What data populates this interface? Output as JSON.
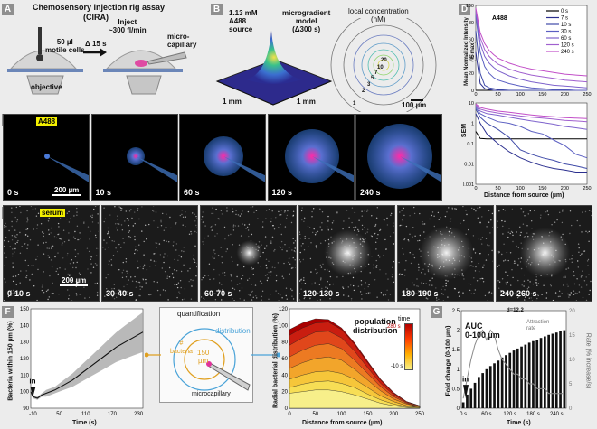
{
  "panels": {
    "A": {
      "letter": "A",
      "title": "Chemosensory injection rig assay",
      "subtitle": "(CIRA)",
      "cells_label": "50 µl\nmotile cells",
      "delta_label": "Δ 15 s",
      "inject_label": "Inject\n~300 fl/min",
      "micro_label": "micro-\ncapillary",
      "objective_label": "objective"
    },
    "B": {
      "letter": "B",
      "conc_label": "1.13 mM\nA488\nsource",
      "model_label": "microgradient\nmodel\n(Δ300 s)",
      "local_conc_label": "local concentration",
      "nm_label": "(nM)",
      "axis1": "1 mm",
      "axis2": "1 mm",
      "scale_label": "100 µm",
      "ring_values": [
        "20",
        "10",
        "7",
        "5",
        "3",
        "2",
        "1"
      ]
    },
    "C": {
      "letter": "C",
      "highlight": "A488",
      "frames": [
        "0 s",
        "10 s",
        "60 s",
        "120 s",
        "240 s"
      ],
      "scale_label": "200 µm"
    },
    "D": {
      "letter": "D",
      "highlight": "A488",
      "top_ylabel": "Mean Normalized Intensity\n(% max)",
      "bottom_ylabel": "SEM",
      "xlabel": "Distance from source (µm)",
      "legend": [
        "0 s",
        "7 s",
        "10 s",
        "30 s",
        "60 s",
        "120 s",
        "240 s"
      ]
    },
    "E": {
      "letter": "E",
      "highlight": "serum",
      "frames": [
        "0-10 s",
        "30-40 s",
        "60-70 s",
        "120-130 s",
        "180-190 s",
        "240-260 s"
      ],
      "scale_label": "200 µm"
    },
    "F": {
      "letter": "F",
      "ylabel": "Bacteria within 150 µm (%)",
      "xlabel": "Time (s)",
      "in_label": "in",
      "quant_title": "quantification",
      "distribution_label": "distribution",
      "bacteria_label": "#\nbacteria",
      "radius_label": "150\nµm",
      "capillary_label": "microcapillary",
      "dist_ylabel": "Radial bacterial distribution (%)",
      "dist_xlabel": "Distance from source (µm)",
      "dist_title": "population\ndistribution",
      "time_label": "time",
      "time_max": "280 s",
      "time_min": "-10 s"
    },
    "G": {
      "letter": "G",
      "ylabel": "Fold change (0-100 µm)",
      "y2label": "Rate (% increase/s)",
      "xlabel": "Time (s)",
      "auc_label": "AUC\n0-100 µm",
      "rate_label": "Attraction\nrate",
      "d_label": "d=12.2",
      "in_label": "in"
    }
  },
  "chart_data": [
    {
      "id": "D-top",
      "type": "line",
      "title": "A488",
      "xlabel": "Distance from source (µm)",
      "ylabel": "Mean Normalized Intensity (% max)",
      "xlim": [
        0,
        250
      ],
      "ylim": [
        0,
        100
      ],
      "xticks": [
        0,
        50,
        100,
        150,
        200,
        250
      ],
      "yticks": [
        0,
        20,
        40,
        60,
        80,
        100
      ],
      "x": [
        0,
        10,
        20,
        30,
        40,
        50,
        75,
        100,
        125,
        150,
        175,
        200,
        225,
        250
      ],
      "series": [
        {
          "name": "0 s",
          "color": "#000000",
          "values": [
            0,
            0,
            0,
            0,
            0,
            0,
            0,
            0,
            0,
            0,
            0,
            0,
            0,
            0
          ]
        },
        {
          "name": "7 s",
          "color": "#2b2f8f",
          "values": [
            45,
            8,
            2,
            1,
            0,
            0,
            0,
            0,
            0,
            0,
            0,
            0,
            0,
            0
          ]
        },
        {
          "name": "10 s",
          "color": "#3f4aa8",
          "values": [
            70,
            20,
            6,
            3,
            2,
            1,
            0,
            0,
            0,
            0,
            0,
            0,
            0,
            0
          ]
        },
        {
          "name": "30 s",
          "color": "#5b5fc2",
          "values": [
            88,
            45,
            28,
            20,
            15,
            12,
            8,
            5,
            3,
            2,
            1,
            1,
            0,
            0
          ]
        },
        {
          "name": "60 s",
          "color": "#7e63cc",
          "values": [
            92,
            55,
            40,
            32,
            27,
            23,
            17,
            13,
            10,
            8,
            6,
            5,
            4,
            3
          ]
        },
        {
          "name": "120 s",
          "color": "#a060cf",
          "values": [
            95,
            62,
            48,
            40,
            35,
            31,
            25,
            21,
            18,
            16,
            14,
            12,
            11,
            10
          ]
        },
        {
          "name": "240 s",
          "color": "#c24fc8",
          "values": [
            97,
            68,
            55,
            47,
            42,
            38,
            32,
            28,
            25,
            23,
            21,
            19,
            18,
            17
          ]
        }
      ]
    },
    {
      "id": "D-bottom",
      "type": "line",
      "xlabel": "Distance from source (µm)",
      "ylabel": "SEM",
      "xlim": [
        0,
        250
      ],
      "ylim": [
        0.001,
        10
      ],
      "yscale": "log",
      "xticks": [
        0,
        50,
        100,
        150,
        200,
        250
      ],
      "yticks": [
        0.001,
        0.01,
        0.1,
        1,
        10
      ],
      "x": [
        0,
        10,
        25,
        50,
        75,
        100,
        125,
        150,
        175,
        200,
        225,
        250
      ],
      "series": [
        {
          "name": "0 s",
          "color": "#000000",
          "values": [
            0.4,
            0.18,
            0.17,
            0.17,
            0.17,
            0.17,
            0.17,
            0.17,
            0.17,
            0.17,
            0.17,
            0.17
          ]
        },
        {
          "name": "7 s",
          "color": "#2b2f8f",
          "values": [
            3,
            1,
            0.3,
            0.1,
            0.04,
            0.02,
            0.012,
            0.008,
            0.006,
            0.005,
            0.004,
            0.004
          ]
        },
        {
          "name": "10 s",
          "color": "#3f4aa8",
          "values": [
            5,
            2,
            1,
            0.5,
            0.2,
            0.05,
            0.03,
            0.02,
            0.015,
            0.01,
            0.008,
            0.006
          ]
        },
        {
          "name": "30 s",
          "color": "#5b5fc2",
          "values": [
            6,
            3,
            2,
            1.2,
            1,
            0.7,
            0.4,
            0.3,
            0.15,
            0.08,
            0.03,
            0.02
          ]
        },
        {
          "name": "60 s",
          "color": "#7e63cc",
          "values": [
            7,
            4,
            3,
            2.5,
            2,
            1.6,
            1.3,
            1.1,
            0.9,
            0.7,
            0.6,
            0.5
          ]
        },
        {
          "name": "120 s",
          "color": "#a060cf",
          "values": [
            8,
            5,
            4,
            3.2,
            2.7,
            2.3,
            2,
            1.8,
            1.6,
            1.4,
            1.3,
            1.2
          ]
        },
        {
          "name": "240 s",
          "color": "#c24fc8",
          "values": [
            9,
            6,
            5,
            4,
            3.5,
            3,
            2.6,
            2.3,
            2.1,
            1.9,
            1.8,
            1.7
          ]
        }
      ]
    },
    {
      "id": "F-left",
      "type": "line",
      "xlabel": "Time (s)",
      "ylabel": "Bacteria within 150 µm (%)",
      "xlim": [
        -15,
        240
      ],
      "ylim": [
        90,
        150
      ],
      "xticks": [
        -10,
        50,
        110,
        170,
        230
      ],
      "yticks": [
        90,
        100,
        110,
        120,
        130,
        140,
        150
      ],
      "x": [
        -15,
        -10,
        0,
        10,
        20,
        40,
        60,
        80,
        100,
        120,
        140,
        160,
        180,
        200,
        220,
        240
      ],
      "series": [
        {
          "name": "mean",
          "values": [
            100,
            97,
            96,
            98,
            99,
            101,
            104,
            107,
            111,
            115,
            119,
            123,
            127,
            130,
            133,
            136
          ]
        },
        {
          "name": "upper",
          "values": [
            101,
            98,
            97,
            99,
            101,
            103,
            107,
            111,
            116,
            121,
            126,
            131,
            136,
            140,
            144,
            148
          ]
        },
        {
          "name": "lower",
          "values": [
            99,
            96,
            95,
            97,
            97,
            99,
            101,
            103,
            106,
            109,
            112,
            115,
            118,
            120,
            122,
            124
          ]
        }
      ]
    },
    {
      "id": "F-right",
      "type": "area",
      "xlabel": "Distance from source (µm)",
      "ylabel": "Radial bacterial distribution (%)",
      "xlim": [
        0,
        250
      ],
      "ylim": [
        0,
        120
      ],
      "xticks": [
        0,
        50,
        100,
        150,
        200,
        250
      ],
      "yticks": [
        0,
        20,
        40,
        60,
        80,
        100,
        120
      ],
      "x": [
        0,
        25,
        50,
        75,
        100,
        125,
        150,
        175,
        200,
        225,
        250
      ],
      "series": [
        {
          "name": "-10 s",
          "values": [
            18,
            20,
            22,
            22,
            20,
            16,
            11,
            6,
            3,
            1,
            0
          ]
        },
        {
          "name": "30 s",
          "values": [
            25,
            29,
            32,
            33,
            30,
            25,
            17,
            10,
            5,
            2,
            1
          ]
        },
        {
          "name": "70 s",
          "values": [
            35,
            40,
            44,
            45,
            42,
            35,
            25,
            15,
            8,
            3,
            1
          ]
        },
        {
          "name": "110 s",
          "values": [
            48,
            55,
            60,
            62,
            58,
            47,
            34,
            21,
            11,
            5,
            2
          ]
        },
        {
          "name": "150 s",
          "values": [
            62,
            70,
            76,
            78,
            72,
            58,
            42,
            26,
            14,
            6,
            2
          ]
        },
        {
          "name": "190 s",
          "values": [
            76,
            85,
            92,
            93,
            85,
            69,
            49,
            30,
            16,
            7,
            3
          ]
        },
        {
          "name": "230 s",
          "values": [
            88,
            97,
            103,
            104,
            95,
            77,
            55,
            34,
            18,
            8,
            3
          ]
        },
        {
          "name": "280 s",
          "values": [
            95,
            103,
            108,
            107,
            97,
            79,
            57,
            35,
            19,
            8,
            3
          ]
        }
      ]
    },
    {
      "id": "G",
      "type": "bar",
      "xlabel": "Time (s)",
      "ylabel": "Fold change (0-100 µm)",
      "y2label": "Rate (% increase/s)",
      "ylim": [
        0,
        2.5
      ],
      "y2lim": [
        0,
        20
      ],
      "yticks": [
        0,
        0.5,
        1,
        1.5,
        2,
        2.5
      ],
      "y2ticks": [
        0,
        5,
        10,
        15,
        20
      ],
      "categories": [
        "0 s",
        "",
        "",
        "",
        "",
        "",
        "60 s",
        "",
        "",
        "",
        "",
        "",
        "120 s",
        "",
        "",
        "",
        "",
        "",
        "180 s",
        "",
        "",
        "",
        "",
        "",
        "240 s",
        "",
        ""
      ],
      "values": [
        0.15,
        0.35,
        0.5,
        0.65,
        0.8,
        0.9,
        1.0,
        1.08,
        1.15,
        1.22,
        1.3,
        1.36,
        1.42,
        1.48,
        1.53,
        1.58,
        1.63,
        1.68,
        1.72,
        1.76,
        1.8,
        1.84,
        1.88,
        1.91,
        1.94,
        1.97,
        2.0
      ],
      "rate": [
        2,
        6,
        10,
        13,
        15,
        16,
        14,
        16,
        15,
        12,
        10,
        9,
        8,
        7,
        7,
        6,
        6,
        5,
        5,
        4,
        4,
        4,
        3,
        3,
        3,
        3,
        3
      ]
    }
  ]
}
